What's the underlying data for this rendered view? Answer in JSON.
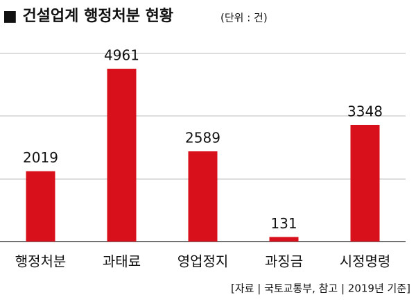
{
  "chart_data": {
    "type": "bar",
    "title": "■ 건설업계 행정처분 현황",
    "unit": "(단위 : 건)",
    "categories": [
      "행정처분",
      "과태료",
      "영업정지",
      "과징금",
      "시정명령"
    ],
    "values": [
      2019,
      4961,
      2589,
      131,
      3348
    ],
    "color": "#d7101b",
    "ylim": [
      0,
      5400
    ],
    "source": "[자료 | 국토교통부, 참고 | 2019년 기준]"
  }
}
